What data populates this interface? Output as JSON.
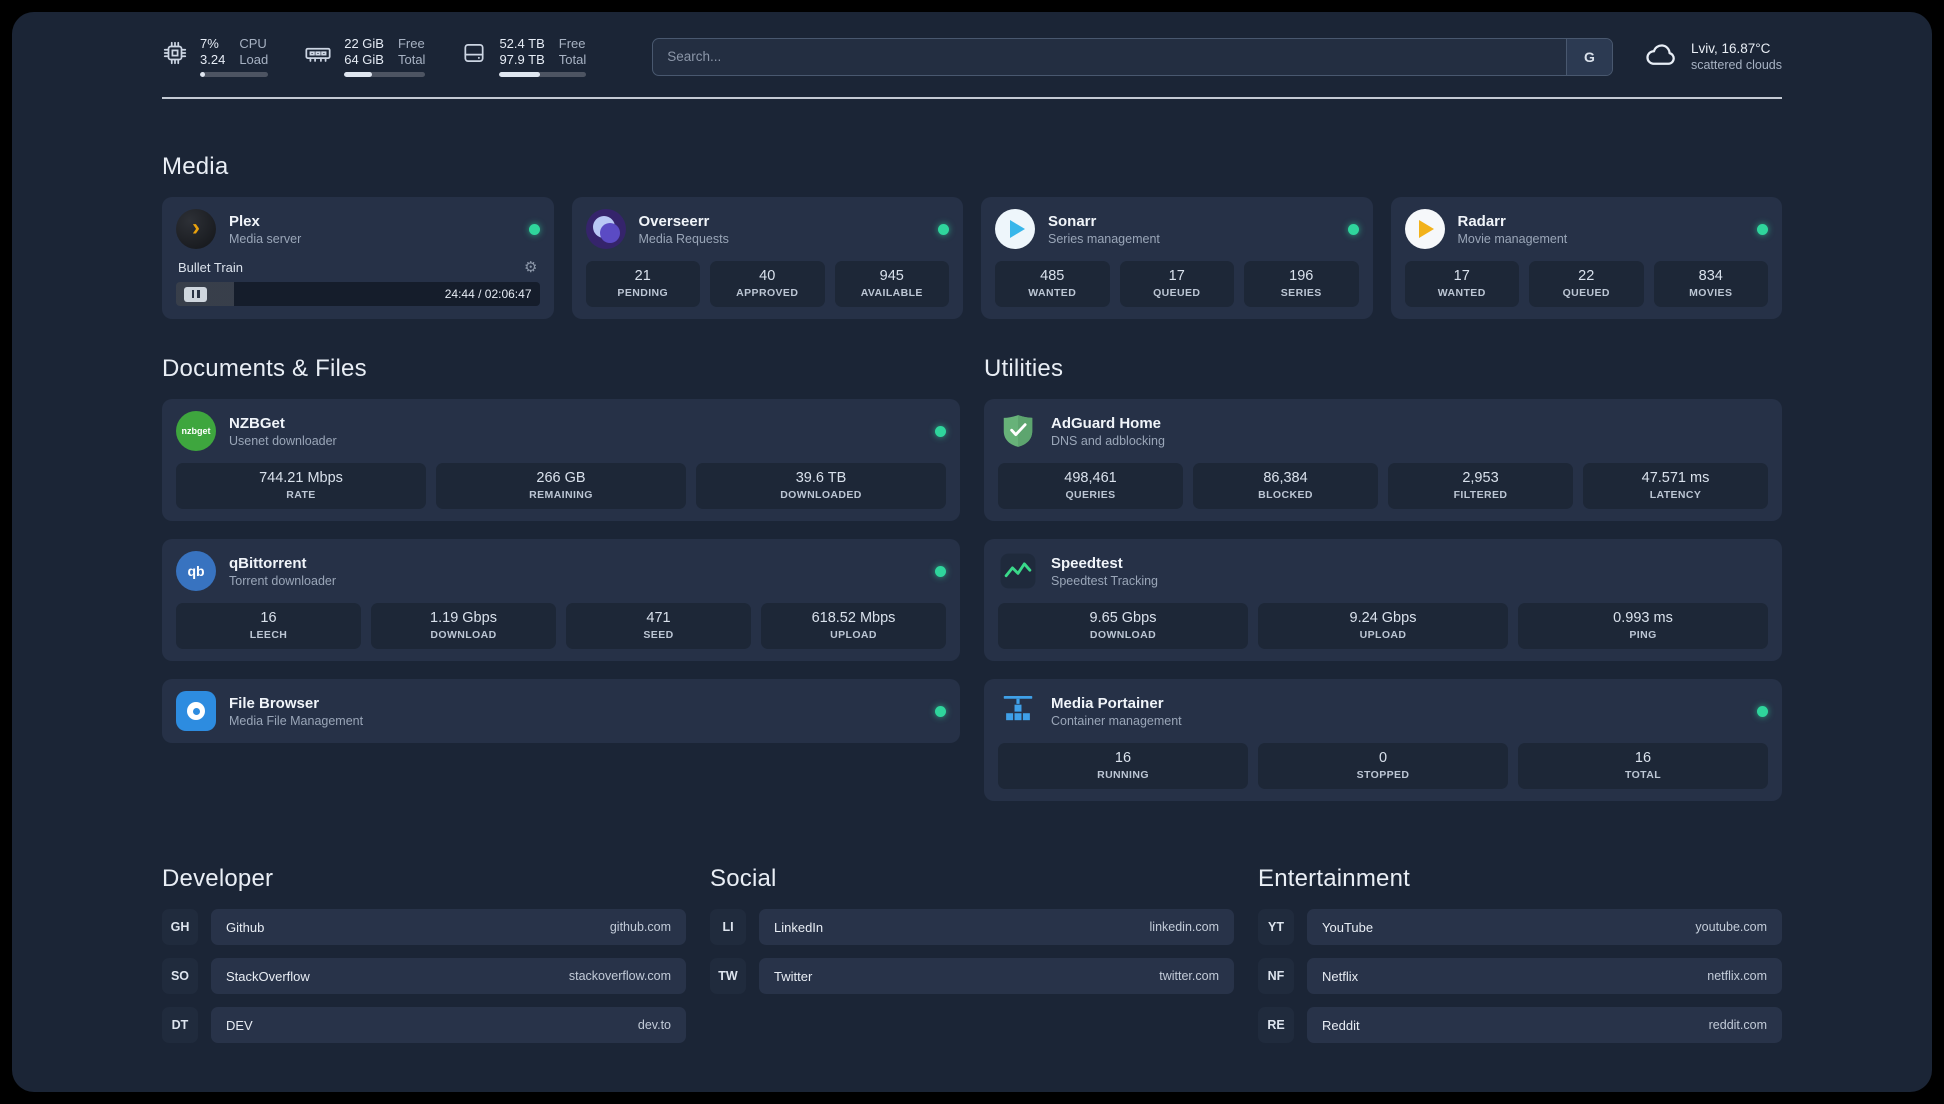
{
  "header": {
    "cpu": {
      "percent": "7%",
      "load": "3.24",
      "label_top": "CPU",
      "label_bottom": "Load",
      "bar_percent": 7
    },
    "memory": {
      "free": "22 GiB",
      "total": "64 GiB",
      "label_top": "Free",
      "label_bottom": "Total",
      "bar_percent": 34
    },
    "disk": {
      "free": "52.4 TB",
      "total": "97.9 TB",
      "label_top": "Free",
      "label_bottom": "Total",
      "bar_percent": 47
    },
    "search": {
      "placeholder": "Search...",
      "button_label": "G"
    },
    "weather": {
      "location": "Lviv, 16.87°C",
      "condition": "scattered clouds"
    }
  },
  "icons": {
    "plex_glyph": "›",
    "nzbget_text": "nzbget",
    "qbittorrent_text": "qb",
    "gear_glyph": "⚙"
  },
  "colors": {
    "status_online": "#2fd59c",
    "plex_accent": "#e8a10d",
    "adguard_green": "#67b279",
    "speedtest_green": "#3ad98a",
    "portainer_blue": "#3fa0e8"
  },
  "sections": {
    "media": {
      "title": "Media",
      "cards": [
        {
          "name": "Plex",
          "subtitle": "Media server",
          "player": {
            "track": "Bullet Train",
            "time": "24:44 / 02:06:47"
          }
        },
        {
          "name": "Overseerr",
          "subtitle": "Media Requests",
          "stats": [
            {
              "value": "21",
              "label": "PENDING"
            },
            {
              "value": "40",
              "label": "APPROVED"
            },
            {
              "value": "945",
              "label": "AVAILABLE"
            }
          ]
        },
        {
          "name": "Sonarr",
          "subtitle": "Series management",
          "stats": [
            {
              "value": "485",
              "label": "WANTED"
            },
            {
              "value": "17",
              "label": "QUEUED"
            },
            {
              "value": "196",
              "label": "SERIES"
            }
          ]
        },
        {
          "name": "Radarr",
          "subtitle": "Movie management",
          "stats": [
            {
              "value": "17",
              "label": "WANTED"
            },
            {
              "value": "22",
              "label": "QUEUED"
            },
            {
              "value": "834",
              "label": "MOVIES"
            }
          ]
        }
      ]
    },
    "documents": {
      "title": "Documents & Files",
      "cards": [
        {
          "name": "NZBGet",
          "subtitle": "Usenet downloader",
          "stats": [
            {
              "value": "744.21 Mbps",
              "label": "RATE"
            },
            {
              "value": "266 GB",
              "label": "REMAINING"
            },
            {
              "value": "39.6 TB",
              "label": "DOWNLOADED"
            }
          ]
        },
        {
          "name": "qBittorrent",
          "subtitle": "Torrent downloader",
          "stats": [
            {
              "value": "16",
              "label": "LEECH"
            },
            {
              "value": "1.19 Gbps",
              "label": "DOWNLOAD"
            },
            {
              "value": "471",
              "label": "SEED"
            },
            {
              "value": "618.52 Mbps",
              "label": "UPLOAD"
            }
          ]
        },
        {
          "name": "File Browser",
          "subtitle": "Media File Management"
        }
      ]
    },
    "utilities": {
      "title": "Utilities",
      "cards": [
        {
          "name": "AdGuard Home",
          "subtitle": "DNS and adblocking",
          "stats": [
            {
              "value": "498,461",
              "label": "QUERIES"
            },
            {
              "value": "86,384",
              "label": "BLOCKED"
            },
            {
              "value": "2,953",
              "label": "FILTERED"
            },
            {
              "value": "47.571 ms",
              "label": "LATENCY"
            }
          ]
        },
        {
          "name": "Speedtest",
          "subtitle": "Speedtest Tracking",
          "stats": [
            {
              "value": "9.65 Gbps",
              "label": "DOWNLOAD"
            },
            {
              "value": "9.24 Gbps",
              "label": "UPLOAD"
            },
            {
              "value": "0.993 ms",
              "label": "PING"
            }
          ]
        },
        {
          "name": "Media Portainer",
          "subtitle": "Container management",
          "stats": [
            {
              "value": "16",
              "label": "RUNNING"
            },
            {
              "value": "0",
              "label": "STOPPED"
            },
            {
              "value": "16",
              "label": "TOTAL"
            }
          ]
        }
      ]
    },
    "bookmarks": {
      "groups": [
        {
          "title": "Developer",
          "items": [
            {
              "abbr": "GH",
              "name": "Github",
              "url": "github.com"
            },
            {
              "abbr": "SO",
              "name": "StackOverflow",
              "url": "stackoverflow.com"
            },
            {
              "abbr": "DT",
              "name": "DEV",
              "url": "dev.to"
            }
          ]
        },
        {
          "title": "Social",
          "items": [
            {
              "abbr": "LI",
              "name": "LinkedIn",
              "url": "linkedin.com"
            },
            {
              "abbr": "TW",
              "name": "Twitter",
              "url": "twitter.com"
            }
          ]
        },
        {
          "title": "Entertainment",
          "items": [
            {
              "abbr": "YT",
              "name": "YouTube",
              "url": "youtube.com"
            },
            {
              "abbr": "NF",
              "name": "Netflix",
              "url": "netflix.com"
            },
            {
              "abbr": "RE",
              "name": "Reddit",
              "url": "reddit.com"
            }
          ]
        }
      ]
    }
  }
}
